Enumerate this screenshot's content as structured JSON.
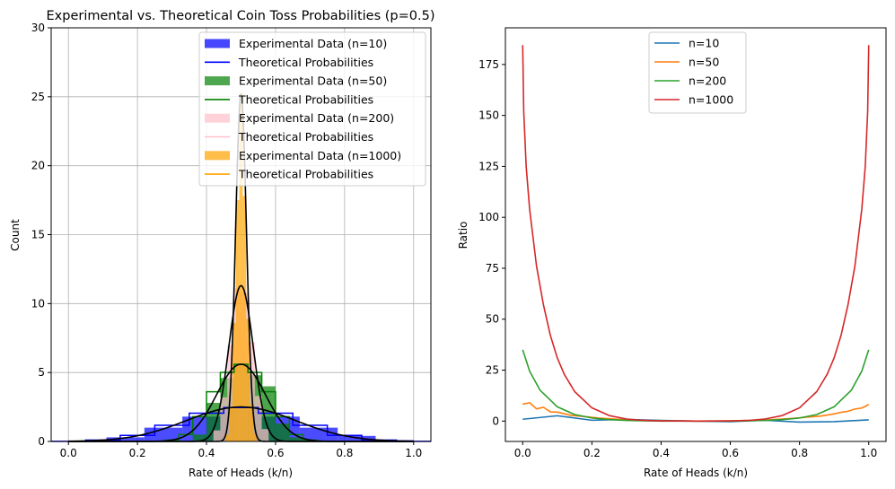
{
  "chart_data": [
    {
      "type": "bar",
      "title": "Experimental vs. Theoretical Coin Toss Probabilities (p=0.5)",
      "xlabel": "Rate of Heads (k/n)",
      "ylabel": "Count",
      "xlim": [
        -0.05,
        1.05
      ],
      "ylim": [
        0,
        30
      ],
      "xticks": [
        "0.0",
        "0.2",
        "0.4",
        "0.6",
        "0.8",
        "1.0"
      ],
      "yticks": [
        "0",
        "5",
        "10",
        "15",
        "20",
        "25",
        "30"
      ],
      "grid": true,
      "legend_position": "top-right",
      "legend": [
        {
          "label": "Experimental Data (n=10)",
          "kind": "patch",
          "color": "#4747ff"
        },
        {
          "label": "Theoretical Probabilities",
          "kind": "line",
          "color": "#0000ff"
        },
        {
          "label": "Experimental Data (n=50)",
          "kind": "patch",
          "color": "#4ea64e"
        },
        {
          "label": "Theoretical Probabilities",
          "kind": "line",
          "color": "#008000"
        },
        {
          "label": "Experimental Data (n=200)",
          "kind": "patch",
          "color": "#ffd2da"
        },
        {
          "label": "Theoretical Probabilities",
          "kind": "line",
          "color": "#ffc0cb"
        },
        {
          "label": "Experimental Data (n=1000)",
          "kind": "patch",
          "color": "#ffbd4a"
        },
        {
          "label": "Theoretical Probabilities",
          "kind": "line",
          "color": "#ffa500"
        }
      ],
      "histograms": [
        {
          "name": "Experimental Data (n=10)",
          "color": "#0000ff",
          "opacity": 0.7,
          "bins": [
            [
              0.11,
              0.22,
              0.3
            ],
            [
              0.22,
              0.33,
              1.0
            ],
            [
              0.33,
              0.44,
              1.8
            ],
            [
              0.44,
              0.56,
              2.3
            ],
            [
              0.56,
              0.67,
              1.8
            ],
            [
              0.67,
              0.78,
              1.0
            ],
            [
              0.78,
              0.89,
              0.4
            ],
            [
              0.89,
              1.0,
              0.1
            ]
          ]
        },
        {
          "name": "Experimental Data (n=50)",
          "color": "#008000",
          "opacity": 0.7,
          "bins": [
            [
              0.36,
              0.4,
              0.5
            ],
            [
              0.4,
              0.44,
              2.8
            ],
            [
              0.44,
              0.48,
              4.6
            ],
            [
              0.48,
              0.52,
              5.6
            ],
            [
              0.52,
              0.56,
              4.8
            ],
            [
              0.56,
              0.6,
              4.0
            ],
            [
              0.6,
              0.64,
              1.3
            ],
            [
              0.64,
              0.68,
              0.3
            ]
          ]
        },
        {
          "name": "Experimental Data (n=200)",
          "color": "#ffc0cb",
          "opacity": 0.7,
          "bins": [
            [
              0.42,
              0.44,
              0.8
            ],
            [
              0.44,
              0.46,
              3.2
            ],
            [
              0.46,
              0.48,
              7.0
            ],
            [
              0.48,
              0.5,
              11.1
            ],
            [
              0.5,
              0.52,
              10.8
            ],
            [
              0.52,
              0.54,
              7.2
            ],
            [
              0.54,
              0.56,
              3.3
            ],
            [
              0.56,
              0.58,
              0.9
            ]
          ]
        },
        {
          "name": "Experimental Data (n=1000)",
          "color": "#ffa500",
          "opacity": 0.7,
          "bins": [
            [
              0.455,
              0.465,
              0.5
            ],
            [
              0.465,
              0.475,
              2.5
            ],
            [
              0.475,
              0.485,
              8.6
            ],
            [
              0.485,
              0.495,
              17.5
            ],
            [
              0.495,
              0.505,
              25.3
            ],
            [
              0.505,
              0.515,
              17.8
            ],
            [
              0.515,
              0.525,
              8.9
            ],
            [
              0.525,
              0.535,
              2.7
            ],
            [
              0.535,
              0.545,
              0.6
            ]
          ]
        }
      ],
      "step_lines": [
        {
          "name": "Theoretical Probabilities (n=10)",
          "color": "#0000ff",
          "x": [
            0.0,
            0.1,
            0.2,
            0.3,
            0.4,
            0.5,
            0.6,
            0.7,
            0.8,
            0.9,
            1.0
          ],
          "y": [
            0.01,
            0.1,
            0.44,
            1.17,
            2.05,
            2.46,
            2.05,
            1.17,
            0.44,
            0.1,
            0.01
          ]
        },
        {
          "name": "Theoretical Probabilities (n=50)",
          "color": "#008000",
          "x": [
            0.3,
            0.34,
            0.38,
            0.42,
            0.46,
            0.5,
            0.54,
            0.58,
            0.62,
            0.66,
            0.7
          ],
          "y": [
            0.1,
            0.5,
            1.8,
            3.6,
            5.0,
            5.6,
            5.0,
            3.6,
            1.8,
            0.5,
            0.1
          ]
        }
      ],
      "density_curves": [
        {
          "name": "n=10",
          "color": "#000000",
          "sigma": 0.158,
          "peak": 2.5
        },
        {
          "name": "n=50",
          "color": "#000000",
          "sigma": 0.0707,
          "peak": 5.6
        },
        {
          "name": "n=200",
          "color": "#000000",
          "sigma": 0.0354,
          "peak": 11.3
        },
        {
          "name": "n=1000",
          "color": "#000000",
          "sigma": 0.0158,
          "peak": 25.2
        }
      ]
    },
    {
      "type": "line",
      "title": "",
      "xlabel": "Rate of Heads (k/n)",
      "ylabel": "Ratio",
      "xlim": [
        -0.05,
        1.05
      ],
      "ylim": [
        -10,
        193
      ],
      "xticks": [
        "0.0",
        "0.2",
        "0.4",
        "0.6",
        "0.8",
        "1.0"
      ],
      "yticks": [
        "0",
        "25",
        "50",
        "75",
        "100",
        "125",
        "150",
        "175"
      ],
      "grid": false,
      "legend_position": "top-center",
      "series": [
        {
          "name": "n=10",
          "color": "#1f77b4",
          "x": [
            0.0,
            0.1,
            0.2,
            0.3,
            0.4,
            0.5,
            0.6,
            0.7,
            0.8,
            0.9,
            1.0
          ],
          "y": [
            0.9,
            2.6,
            0.4,
            0.8,
            0.3,
            0.0,
            -0.3,
            0.4,
            -0.5,
            -0.3,
            0.6
          ]
        },
        {
          "name": "n=50",
          "color": "#ff7f0e",
          "x": [
            0.0,
            0.02,
            0.04,
            0.06,
            0.08,
            0.1,
            0.14,
            0.18,
            0.22,
            0.3,
            0.4,
            0.5,
            0.6,
            0.7,
            0.78,
            0.82,
            0.86,
            0.9,
            0.92,
            0.94,
            0.96,
            0.98,
            1.0
          ],
          "y": [
            8.3,
            9.0,
            6.0,
            6.8,
            4.5,
            4.4,
            2.8,
            2.2,
            1.5,
            0.6,
            0.1,
            0.0,
            0.1,
            0.5,
            1.3,
            1.9,
            2.4,
            3.5,
            4.3,
            4.8,
            5.9,
            6.4,
            8.1
          ]
        },
        {
          "name": "n=200",
          "color": "#2ca02c",
          "x": [
            0.0,
            0.02,
            0.05,
            0.1,
            0.15,
            0.2,
            0.25,
            0.3,
            0.4,
            0.5,
            0.6,
            0.7,
            0.75,
            0.8,
            0.85,
            0.9,
            0.95,
            0.98,
            1.0
          ],
          "y": [
            35.0,
            24.5,
            15.2,
            7.0,
            3.2,
            1.5,
            0.7,
            0.3,
            0.0,
            0.0,
            0.0,
            0.3,
            0.7,
            1.5,
            3.2,
            7.0,
            15.2,
            24.5,
            35.0
          ]
        },
        {
          "name": "n=1000",
          "color": "#d62728",
          "x": [
            0.0,
            0.003,
            0.01,
            0.02,
            0.04,
            0.06,
            0.08,
            0.1,
            0.12,
            0.15,
            0.2,
            0.25,
            0.3,
            0.35,
            0.4,
            0.5,
            0.6,
            0.65,
            0.7,
            0.75,
            0.8,
            0.85,
            0.88,
            0.9,
            0.92,
            0.94,
            0.96,
            0.98,
            0.99,
            0.997,
            1.0
          ],
          "y": [
            184.5,
            152.0,
            125.0,
            104.0,
            76.0,
            57.0,
            42.0,
            31.0,
            23.0,
            14.5,
            6.5,
            2.7,
            1.0,
            0.3,
            0.1,
            0.0,
            0.1,
            0.3,
            1.0,
            2.7,
            6.5,
            14.5,
            23.0,
            31.0,
            42.0,
            57.0,
            76.0,
            104.0,
            125.0,
            152.0,
            184.5
          ]
        }
      ]
    }
  ]
}
